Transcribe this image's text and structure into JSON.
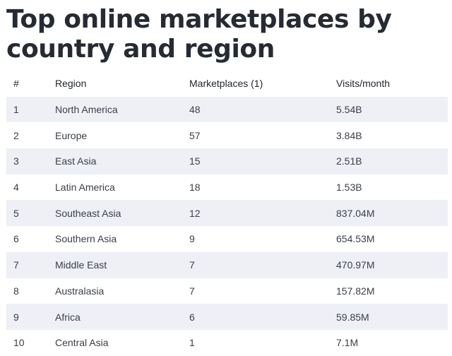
{
  "title": "Top online marketplaces by country and region",
  "table": {
    "headers": [
      "#",
      "Region",
      "Marketplaces (1)",
      "Visits/month"
    ],
    "rows": [
      [
        "1",
        "North America",
        "48",
        "5.54B"
      ],
      [
        "2",
        "Europe",
        "57",
        "3.84B"
      ],
      [
        "3",
        "East Asia",
        "15",
        "2.51B"
      ],
      [
        "4",
        "Latin America",
        "18",
        "1.53B"
      ],
      [
        "5",
        "Southeast Asia",
        "12",
        "837.04M"
      ],
      [
        "6",
        "Southern Asia",
        "9",
        "654.53M"
      ],
      [
        "7",
        "Middle East",
        "7",
        "470.97M"
      ],
      [
        "8",
        "Australasia",
        "7",
        "157.82M"
      ],
      [
        "9",
        "Africa",
        "6",
        "59.85M"
      ],
      [
        "10",
        "Central Asia",
        "1",
        "7.1M"
      ]
    ]
  },
  "colors": {
    "stripe": "#eef0f6",
    "title": "#262b33"
  }
}
